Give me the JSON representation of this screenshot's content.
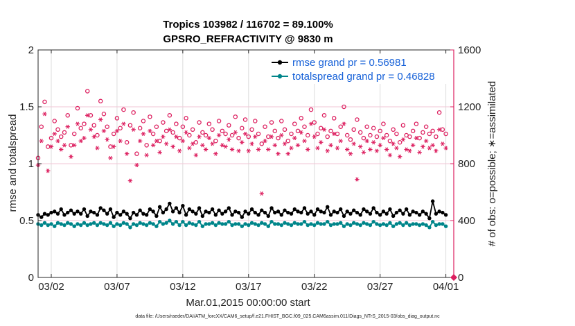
{
  "chart_data": {
    "type": "line",
    "title": "Tropics 103982 / 116702 = 89.100%",
    "subtitle": "GPSRO_REFRACTIVITY @ 9830 m",
    "xlabel": "Mar.01,2015 00:00:00 start",
    "ylabel": "rmse and totalspread",
    "y2label": "# of obs: o=possible; ∗=assimilated",
    "footnote": "data file: /Users/raeder/DAI/ATM_forcXX/CAM6_setup/f.e21.FHIST_BGC.f09_025.CAM6assim.011/Diags_NTrS_2015-03/obs_diag_output.nc",
    "xlim": [
      0,
      31.6
    ],
    "ylim": [
      0,
      2
    ],
    "y2lim": [
      0,
      1600
    ],
    "grid": true,
    "legend_position": "top-right",
    "xticks": [
      {
        "value": 1,
        "label": "03/02"
      },
      {
        "value": 6,
        "label": "03/07"
      },
      {
        "value": 11,
        "label": "03/12"
      },
      {
        "value": 16,
        "label": "03/17"
      },
      {
        "value": 21,
        "label": "03/22"
      },
      {
        "value": 26,
        "label": "03/27"
      },
      {
        "value": 31,
        "label": "04/01"
      }
    ],
    "yticks": [
      {
        "value": 0,
        "label": "0"
      },
      {
        "value": 0.5,
        "label": "0.5"
      },
      {
        "value": 1,
        "label": "1"
      },
      {
        "value": 1.5,
        "label": "1.5"
      },
      {
        "value": 2,
        "label": "2"
      }
    ],
    "y2ticks": [
      {
        "value": 0,
        "label": "0"
      },
      {
        "value": 400,
        "label": "400"
      },
      {
        "value": 800,
        "label": "800"
      },
      {
        "value": 1200,
        "label": "1200"
      },
      {
        "value": 1600,
        "label": "1600"
      }
    ],
    "colors": {
      "rmse": "#000000",
      "spread": "#00858a",
      "obs": "#dd2060",
      "legend_text": "#1560d8",
      "axis_right": "#dd2060",
      "grid": "#dcdcdc"
    },
    "series": [
      {
        "name": "rmse grand pr = 0.56981",
        "axis": "left",
        "x": [
          0.0,
          0.25,
          0.5,
          0.75,
          1.0,
          1.25,
          1.5,
          1.75,
          2.0,
          2.25,
          2.5,
          2.75,
          3.0,
          3.25,
          3.5,
          3.75,
          4.0,
          4.25,
          4.5,
          4.75,
          5.0,
          5.25,
          5.5,
          5.75,
          6.0,
          6.25,
          6.5,
          6.75,
          7.0,
          7.25,
          7.5,
          7.75,
          8.0,
          8.25,
          8.5,
          8.75,
          9.0,
          9.25,
          9.5,
          9.75,
          10.0,
          10.25,
          10.5,
          10.75,
          11.0,
          11.25,
          11.5,
          11.75,
          12.0,
          12.25,
          12.5,
          12.75,
          13.0,
          13.25,
          13.5,
          13.75,
          14.0,
          14.25,
          14.5,
          14.75,
          15.0,
          15.25,
          15.5,
          15.75,
          16.0,
          16.25,
          16.5,
          16.75,
          17.0,
          17.25,
          17.5,
          17.75,
          18.0,
          18.25,
          18.5,
          18.75,
          19.0,
          19.25,
          19.5,
          19.75,
          20.0,
          20.25,
          20.5,
          20.75,
          21.0,
          21.25,
          21.5,
          21.75,
          22.0,
          22.25,
          22.5,
          22.75,
          23.0,
          23.25,
          23.5,
          23.75,
          24.0,
          24.25,
          24.5,
          24.75,
          25.0,
          25.25,
          25.5,
          25.75,
          26.0,
          26.25,
          26.5,
          26.75,
          27.0,
          27.25,
          27.5,
          27.75,
          28.0,
          28.25,
          28.5,
          28.75,
          29.0,
          29.25,
          29.5,
          29.75,
          30.0,
          30.25,
          30.5,
          30.75,
          31.0
        ],
        "values": [
          0.55,
          0.53,
          0.56,
          0.55,
          0.57,
          0.58,
          0.56,
          0.6,
          0.55,
          0.57,
          0.59,
          0.56,
          0.58,
          0.56,
          0.6,
          0.54,
          0.58,
          0.57,
          0.55,
          0.61,
          0.59,
          0.56,
          0.6,
          0.53,
          0.57,
          0.55,
          0.58,
          0.56,
          0.52,
          0.57,
          0.55,
          0.59,
          0.56,
          0.55,
          0.6,
          0.58,
          0.54,
          0.62,
          0.57,
          0.6,
          0.65,
          0.58,
          0.61,
          0.57,
          0.63,
          0.55,
          0.6,
          0.58,
          0.56,
          0.61,
          0.54,
          0.58,
          0.57,
          0.6,
          0.55,
          0.59,
          0.56,
          0.58,
          0.61,
          0.55,
          0.58,
          0.57,
          0.53,
          0.58,
          0.56,
          0.6,
          0.57,
          0.55,
          0.59,
          0.57,
          0.54,
          0.61,
          0.57,
          0.58,
          0.55,
          0.59,
          0.57,
          0.56,
          0.6,
          0.58,
          0.57,
          0.61,
          0.56,
          0.58,
          0.55,
          0.6,
          0.58,
          0.57,
          0.62,
          0.55,
          0.58,
          0.57,
          0.6,
          0.54,
          0.58,
          0.56,
          0.59,
          0.57,
          0.55,
          0.6,
          0.58,
          0.56,
          0.61,
          0.57,
          0.55,
          0.58,
          0.56,
          0.6,
          0.54,
          0.57,
          0.59,
          0.56,
          0.6,
          0.55,
          0.58,
          0.57,
          0.55,
          0.58,
          0.56,
          0.52,
          0.67,
          0.56,
          0.58,
          0.57,
          0.55
        ]
      },
      {
        "name": "totalspread grand pr = 0.46828",
        "axis": "left",
        "x": [
          0.0,
          0.25,
          0.5,
          0.75,
          1.0,
          1.25,
          1.5,
          1.75,
          2.0,
          2.25,
          2.5,
          2.75,
          3.0,
          3.25,
          3.5,
          3.75,
          4.0,
          4.25,
          4.5,
          4.75,
          5.0,
          5.25,
          5.5,
          5.75,
          6.0,
          6.25,
          6.5,
          6.75,
          7.0,
          7.25,
          7.5,
          7.75,
          8.0,
          8.25,
          8.5,
          8.75,
          9.0,
          9.25,
          9.5,
          9.75,
          10.0,
          10.25,
          10.5,
          10.75,
          11.0,
          11.25,
          11.5,
          11.75,
          12.0,
          12.25,
          12.5,
          12.75,
          13.0,
          13.25,
          13.5,
          13.75,
          14.0,
          14.25,
          14.5,
          14.75,
          15.0,
          15.25,
          15.5,
          15.75,
          16.0,
          16.25,
          16.5,
          16.75,
          17.0,
          17.25,
          17.5,
          17.75,
          18.0,
          18.25,
          18.5,
          18.75,
          19.0,
          19.25,
          19.5,
          19.75,
          20.0,
          20.25,
          20.5,
          20.75,
          21.0,
          21.25,
          21.5,
          21.75,
          22.0,
          22.25,
          22.5,
          22.75,
          23.0,
          23.25,
          23.5,
          23.75,
          24.0,
          24.25,
          24.5,
          24.75,
          25.0,
          25.25,
          25.5,
          25.75,
          26.0,
          26.25,
          26.5,
          26.75,
          27.0,
          27.25,
          27.5,
          27.75,
          28.0,
          28.25,
          28.5,
          28.75,
          29.0,
          29.25,
          29.5,
          29.75,
          30.0,
          30.25,
          30.5,
          30.75,
          31.0
        ],
        "values": [
          0.47,
          0.46,
          0.48,
          0.46,
          0.47,
          0.45,
          0.48,
          0.47,
          0.46,
          0.48,
          0.47,
          0.45,
          0.47,
          0.46,
          0.48,
          0.46,
          0.47,
          0.48,
          0.46,
          0.48,
          0.47,
          0.46,
          0.48,
          0.45,
          0.47,
          0.46,
          0.48,
          0.47,
          0.44,
          0.47,
          0.46,
          0.48,
          0.47,
          0.46,
          0.48,
          0.47,
          0.45,
          0.49,
          0.47,
          0.48,
          0.5,
          0.47,
          0.49,
          0.46,
          0.49,
          0.46,
          0.48,
          0.47,
          0.46,
          0.49,
          0.45,
          0.47,
          0.47,
          0.48,
          0.46,
          0.48,
          0.47,
          0.47,
          0.49,
          0.46,
          0.47,
          0.47,
          0.45,
          0.47,
          0.46,
          0.48,
          0.47,
          0.46,
          0.48,
          0.47,
          0.45,
          0.49,
          0.47,
          0.47,
          0.46,
          0.48,
          0.47,
          0.46,
          0.48,
          0.47,
          0.47,
          0.49,
          0.46,
          0.47,
          0.46,
          0.48,
          0.47,
          0.47,
          0.49,
          0.46,
          0.47,
          0.47,
          0.48,
          0.45,
          0.47,
          0.46,
          0.48,
          0.47,
          0.46,
          0.48,
          0.47,
          0.46,
          0.49,
          0.47,
          0.46,
          0.47,
          0.46,
          0.48,
          0.45,
          0.47,
          0.48,
          0.46,
          0.48,
          0.46,
          0.47,
          0.47,
          0.46,
          0.47,
          0.46,
          0.44,
          0.49,
          0.46,
          0.47,
          0.47,
          0.45
        ]
      },
      {
        "name": "possible obs",
        "axis": "right",
        "marker": "circle",
        "x": [
          0.0,
          0.25,
          0.5,
          0.75,
          1.0,
          1.25,
          1.5,
          1.75,
          2.0,
          2.25,
          2.5,
          2.75,
          3.0,
          3.25,
          3.5,
          3.75,
          4.0,
          4.25,
          4.5,
          4.75,
          5.0,
          5.25,
          5.5,
          5.75,
          6.0,
          6.25,
          6.5,
          6.75,
          7.0,
          7.25,
          7.5,
          7.75,
          8.0,
          8.25,
          8.5,
          8.75,
          9.0,
          9.25,
          9.5,
          9.75,
          10.0,
          10.25,
          10.5,
          10.75,
          11.0,
          11.25,
          11.5,
          11.75,
          12.0,
          12.25,
          12.5,
          12.75,
          13.0,
          13.25,
          13.5,
          13.75,
          14.0,
          14.25,
          14.5,
          14.75,
          15.0,
          15.25,
          15.5,
          15.75,
          16.0,
          16.25,
          16.5,
          16.75,
          17.0,
          17.25,
          17.5,
          17.75,
          18.0,
          18.25,
          18.5,
          18.75,
          19.0,
          19.25,
          19.5,
          19.75,
          20.0,
          20.25,
          20.5,
          20.75,
          21.0,
          21.25,
          21.5,
          21.75,
          22.0,
          22.25,
          22.5,
          22.75,
          23.0,
          23.25,
          23.5,
          23.75,
          24.0,
          24.25,
          24.5,
          24.75,
          25.0,
          25.25,
          25.5,
          25.75,
          26.0,
          26.25,
          26.5,
          26.75,
          27.0,
          27.25,
          27.5,
          27.75,
          28.0,
          28.25,
          28.5,
          28.75,
          29.0,
          29.25,
          29.5,
          29.75,
          30.0,
          30.25,
          30.5,
          30.75,
          31.0
        ],
        "values": [
          840,
          1060,
          1235,
          920,
          980,
          1100,
          1040,
          990,
          1020,
          1140,
          930,
          1010,
          1190,
          1050,
          1080,
          1310,
          1140,
          1070,
          1000,
          1240,
          1150,
          1060,
          920,
          1010,
          1120,
          1050,
          1180,
          950,
          1070,
          1160,
          870,
          1050,
          1100,
          930,
          1130,
          1010,
          1060,
          960,
          1090,
          1030,
          1140,
          1020,
          1080,
          980,
          1060,
          1120,
          1000,
          1040,
          950,
          1090,
          1020,
          1000,
          1080,
          1040,
          960,
          1100,
          1030,
          1010,
          1070,
          1000,
          1130,
          980,
          1050,
          1110,
          990,
          1040,
          1100,
          1010,
          940,
          1060,
          990,
          1090,
          1030,
          980,
          1100,
          1040,
          960,
          1010,
          1080,
          1030,
          1120,
          1060,
          1000,
          1180,
          1090,
          1010,
          1050,
          1140,
          990,
          1030,
          1120,
          1010,
          1060,
          1200,
          1000,
          970,
          1040,
          1110,
          1020,
          980,
          1060,
          1000,
          1050,
          990,
          1030,
          1080,
          1000,
          960,
          1040,
          1010,
          950,
          1070,
          1000,
          990,
          1030,
          1080,
          980,
          1020,
          1060,
          1010,
          1030,
          990,
          1160,
          1040,
          1010
        ]
      },
      {
        "name": "assimilated obs",
        "axis": "right",
        "marker": "asterisk",
        "x": [
          0.0,
          0.25,
          0.5,
          0.75,
          1.0,
          1.25,
          1.5,
          1.75,
          2.0,
          2.25,
          2.5,
          2.75,
          3.0,
          3.25,
          3.5,
          3.75,
          4.0,
          4.25,
          4.5,
          4.75,
          5.0,
          5.25,
          5.5,
          5.75,
          6.0,
          6.25,
          6.5,
          6.75,
          7.0,
          7.25,
          7.5,
          7.75,
          8.0,
          8.25,
          8.5,
          8.75,
          9.0,
          9.25,
          9.5,
          9.75,
          10.0,
          10.25,
          10.5,
          10.75,
          11.0,
          11.25,
          11.5,
          11.75,
          12.0,
          12.25,
          12.5,
          12.75,
          13.0,
          13.25,
          13.5,
          13.75,
          14.0,
          14.25,
          14.5,
          14.75,
          15.0,
          15.25,
          15.5,
          15.75,
          16.0,
          16.25,
          16.5,
          16.75,
          17.0,
          17.25,
          17.5,
          17.75,
          18.0,
          18.25,
          18.5,
          18.75,
          19.0,
          19.25,
          19.5,
          19.75,
          20.0,
          20.25,
          20.5,
          20.75,
          21.0,
          21.25,
          21.5,
          21.75,
          22.0,
          22.25,
          22.5,
          22.75,
          23.0,
          23.25,
          23.5,
          23.75,
          24.0,
          24.25,
          24.5,
          24.75,
          25.0,
          25.25,
          25.5,
          25.75,
          26.0,
          26.25,
          26.5,
          26.75,
          27.0,
          27.25,
          27.5,
          27.75,
          28.0,
          28.25,
          28.5,
          28.75,
          29.0,
          29.25,
          29.5,
          29.75,
          30.0,
          30.25,
          30.5,
          30.75,
          31.0
        ],
        "values": [
          790,
          960,
          1150,
          750,
          920,
          1010,
          960,
          900,
          930,
          1060,
          850,
          930,
          1080,
          960,
          980,
          1140,
          1040,
          990,
          910,
          1110,
          1030,
          970,
          840,
          920,
          1030,
          960,
          1080,
          870,
          680,
          1040,
          790,
          960,
          1010,
          860,
          1030,
          930,
          960,
          880,
          990,
          940,
          1040,
          920,
          990,
          890,
          960,
          1020,
          910,
          940,
          860,
          990,
          930,
          900,
          980,
          940,
          870,
          1000,
          930,
          920,
          970,
          900,
          1020,
          890,
          950,
          1010,
          890,
          940,
          990,
          900,
          590,
          960,
          900,
          990,
          930,
          870,
          1000,
          940,
          870,
          910,
          980,
          930,
          1020,
          960,
          900,
          1080,
          990,
          910,
          950,
          1040,
          890,
          930,
          1010,
          910,
          960,
          1080,
          900,
          870,
          940,
          690,
          920,
          880,
          960,
          900,
          950,
          890,
          930,
          980,
          900,
          860,
          940,
          910,
          850,
          970,
          900,
          890,
          930,
          980,
          880,
          920,
          960,
          910,
          930,
          890,
          1040,
          940,
          910
        ]
      }
    ]
  }
}
